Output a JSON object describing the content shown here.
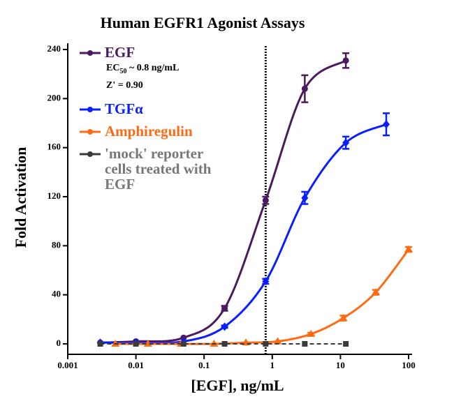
{
  "chart_data": {
    "type": "line",
    "title": "Human EGFR1 Agonist Assays",
    "x_label": "[EGF], ng/mL",
    "y_label": "Fold Activation",
    "xscale": "log",
    "xlim": [
      0.001,
      100
    ],
    "xticks": [
      0.001,
      0.01,
      0.1,
      1,
      10,
      100
    ],
    "ylim": [
      0,
      240
    ],
    "yticks": [
      0,
      40,
      80,
      120,
      160,
      200,
      240
    ],
    "reference_x": 0.8,
    "ec50_label": {
      "main": "EC",
      "sub": "50",
      "rest": " ~ 0.8 ng/mL"
    },
    "z_label": "Z' = 0.90",
    "series": [
      {
        "name": "EGF",
        "color": "#4b1a5e",
        "marker": "circle",
        "x": [
          0.003,
          0.01,
          0.05,
          0.2,
          0.8,
          3,
          12
        ],
        "values": [
          1,
          2,
          5,
          29,
          117,
          208,
          231
        ],
        "errors": [
          null,
          null,
          null,
          2,
          3,
          11,
          6
        ]
      },
      {
        "name": "TGFα",
        "color": "#0a1fff",
        "marker": "diamond",
        "x": [
          0.003,
          0.01,
          0.05,
          0.2,
          0.8,
          3,
          12,
          47
        ],
        "values": [
          1,
          1,
          2,
          14,
          51,
          119,
          164,
          179
        ],
        "errors": [
          null,
          null,
          null,
          1,
          2,
          5,
          5,
          9
        ]
      },
      {
        "name": "Amphiregulin",
        "color": "#ff6a13",
        "marker": "triangle",
        "x": [
          0.005,
          0.015,
          0.046,
          0.14,
          0.41,
          1.2,
          3.7,
          11,
          33,
          100
        ],
        "values": [
          0,
          0,
          0,
          0,
          1,
          2,
          8,
          21,
          42,
          77
        ],
        "errors": [
          null,
          null,
          null,
          null,
          null,
          null,
          1,
          2,
          2,
          2
        ]
      },
      {
        "name": "'mock' reporter cells treated with EGF",
        "color": "#3a3a3a",
        "text_color": "#777777",
        "marker": "square",
        "dashed": true,
        "x": [
          0.003,
          0.01,
          0.05,
          0.2,
          0.8,
          3,
          12
        ],
        "values": [
          0,
          0,
          0,
          0,
          0,
          0,
          0
        ],
        "errors": [
          null,
          null,
          null,
          null,
          null,
          null,
          null
        ]
      }
    ]
  }
}
